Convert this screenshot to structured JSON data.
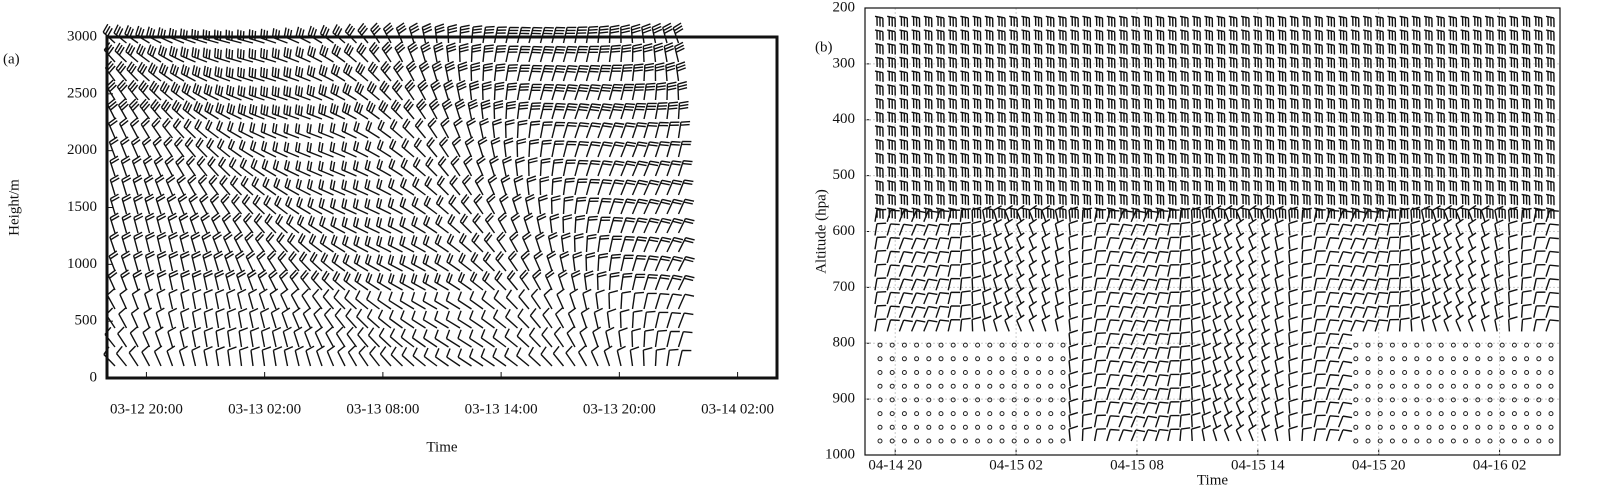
{
  "chart_data": [
    {
      "type": "barb",
      "panel": "(a)",
      "xlabel": "Time",
      "ylabel": "Height/m",
      "xlim": [
        -2,
        32
      ],
      "xticks": [
        {
          "value": 0,
          "label": "03-12 20:00"
        },
        {
          "value": 6,
          "label": "03-13 02:00"
        },
        {
          "value": 12,
          "label": "03-13 08:00"
        },
        {
          "value": 18,
          "label": "03-13 14:00"
        },
        {
          "value": 24,
          "label": "03-13 20:00"
        },
        {
          "value": 30,
          "label": "03-14 02:00"
        }
      ],
      "ylim": [
        0,
        3000
      ],
      "yticks": [
        0,
        500,
        1000,
        1500,
        2000,
        2500,
        3000
      ],
      "grid": false
    },
    {
      "type": "barb",
      "panel": "(b)",
      "xlabel": "Time",
      "ylabel": "Altitude (hpa)",
      "xlim": [
        -1.5,
        33
      ],
      "xticks": [
        {
          "value": 0,
          "label": "04-14 20"
        },
        {
          "value": 6,
          "label": "04-15 02"
        },
        {
          "value": 12,
          "label": "04-15 08"
        },
        {
          "value": 18,
          "label": "04-15 14"
        },
        {
          "value": 24,
          "label": "04-15 20"
        },
        {
          "value": 30,
          "label": "04-16 02"
        }
      ],
      "ylim": [
        1000,
        200
      ],
      "yticks": [
        200,
        300,
        400,
        500,
        600,
        700,
        800,
        900,
        1000
      ],
      "grid": true
    }
  ]
}
